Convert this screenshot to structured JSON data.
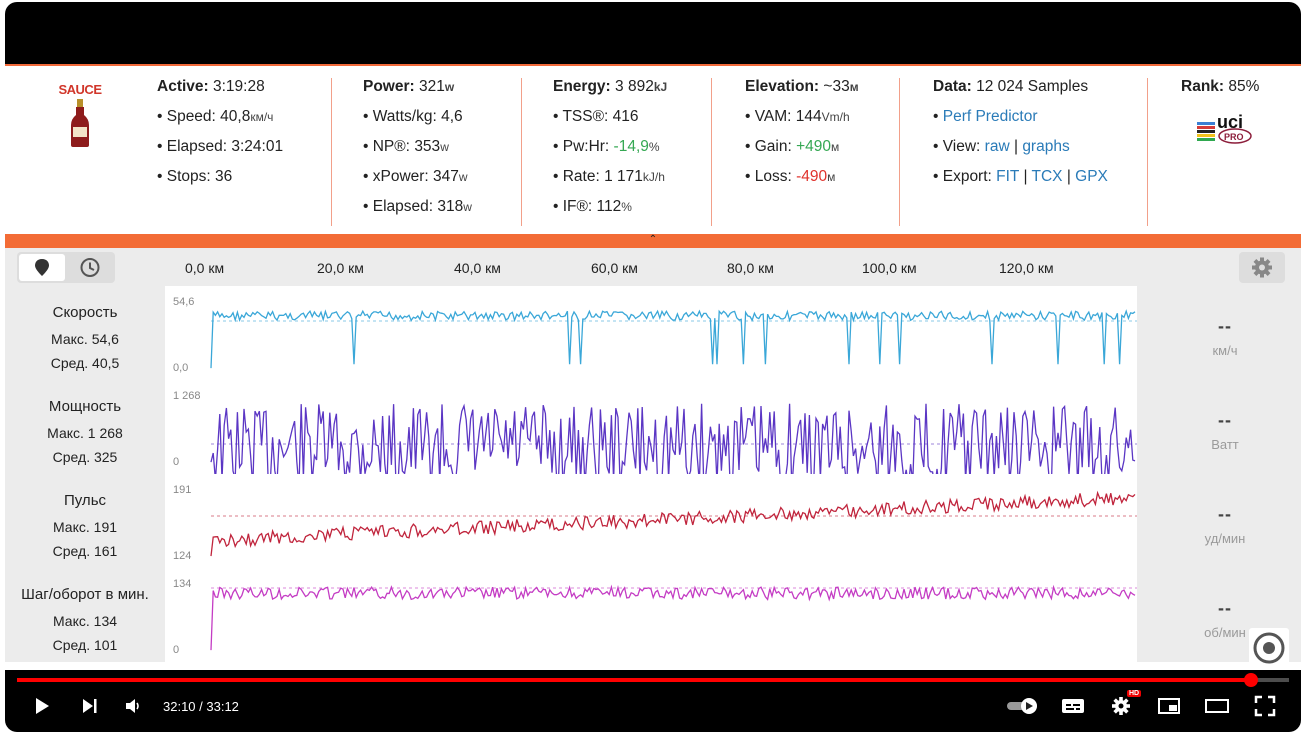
{
  "header": {
    "logo_text": "SAUCE",
    "active": {
      "label": "Active:",
      "value": "3:19:28",
      "rows": [
        {
          "label": "• Speed:",
          "value": "40,8",
          "unit": "км/ч"
        },
        {
          "label": "• Elapsed:",
          "value": "3:24:01",
          "unit": ""
        },
        {
          "label": "• Stops:",
          "value": "36",
          "unit": ""
        }
      ]
    },
    "power": {
      "label": "Power:",
      "value": "321",
      "unit": "w",
      "rows": [
        {
          "label": "• Watts/kg:",
          "value": "4,6",
          "unit": ""
        },
        {
          "label": "• NP®:",
          "value": "353",
          "unit": "w"
        },
        {
          "label": "• xPower:",
          "value": "347",
          "unit": "w"
        },
        {
          "label": "• Elapsed:",
          "value": "318",
          "unit": "w"
        }
      ]
    },
    "energy": {
      "label": "Energy:",
      "value": "3 892",
      "unit": "kJ",
      "rows": [
        {
          "label": "• TSS®:",
          "value": "416",
          "unit": ""
        },
        {
          "label": "• Pw:Hr:",
          "value": "-14,9",
          "unit": "%"
        },
        {
          "label": "• Rate:",
          "value": "1 171",
          "unit": "kJ/h"
        },
        {
          "label": "• IF®:",
          "value": "112",
          "unit": "%"
        }
      ]
    },
    "elevation": {
      "label": "Elevation:",
      "value": "~33",
      "unit": "м",
      "rows": [
        {
          "label": "• VAM:",
          "value": "144",
          "unit": "Vm/h"
        },
        {
          "label": "• Gain:",
          "value": "+490",
          "unit": "м"
        },
        {
          "label": "• Loss:",
          "value": "-490",
          "unit": "м"
        }
      ]
    },
    "data": {
      "label": "Data:",
      "value": "12 024 Samples",
      "perf_predictor": "Perf Predictor",
      "view_label": "• View:",
      "view_raw": "raw",
      "view_sep": "|",
      "view_graphs": "graphs",
      "export_label": "• Export:",
      "export_fit": "FIT",
      "export_tcx": "TCX",
      "export_gpx": "GPX"
    },
    "rank": {
      "label": "Rank:",
      "value": "85%",
      "badge_uci": "uci",
      "badge_pro": "PRO"
    }
  },
  "axis": {
    "ticks": [
      "0,0 км",
      "20,0 км",
      "40,0 км",
      "60,0 км",
      "80,0 км",
      "100,0 км",
      "120,0 км"
    ]
  },
  "rows": [
    {
      "title": "Скорость",
      "max": "Макс. 54,6",
      "avg": "Сред. 40,5",
      "ymax": "54,6",
      "ymin": "0,0",
      "current": "--",
      "unit": "км/ч",
      "color": "#3aa7d8"
    },
    {
      "title": "Мощность",
      "max": "Макс. 1 268",
      "avg": "Сред. 325",
      "ymax": "1 268",
      "ymin": "0",
      "current": "--",
      "unit": "Ватт",
      "color": "#5b36c4"
    },
    {
      "title": "Пульс",
      "max": "Макс. 191",
      "avg": "Сред. 161",
      "ymax": "191",
      "ymin": "124",
      "current": "--",
      "unit": "уд/мин",
      "color": "#c0243c"
    },
    {
      "title": "Шаг/оборот в мин.",
      "max": "Макс. 134",
      "avg": "Сред. 101",
      "ymax": "134",
      "ymin": "0",
      "current": "--",
      "unit": "об/мин",
      "color": "#c43cc4"
    }
  ],
  "player": {
    "time": "32:10 / 33:12",
    "progress": 0.97,
    "hd_badge": "HD"
  }
}
